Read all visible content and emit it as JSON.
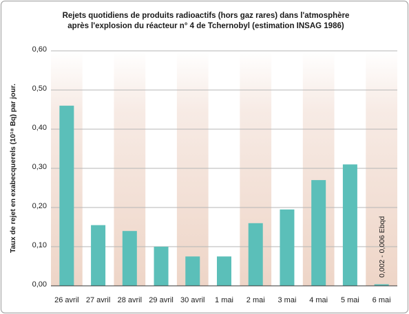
{
  "chart_data": {
    "type": "bar",
    "title_line1": "Rejets quotidiens de produits radioactifs (hors gaz rares) dans l'atmosphère",
    "title_line2": "après l'explosion du réacteur n° 4 de Tchernobyl (estimation INSAG 1986)",
    "ylabel": "Taux de rejet en exabecquerels (10¹⁸ Bq) par jour.",
    "xlabel": "",
    "categories": [
      "26 avril",
      "27 avril",
      "28 avril",
      "29 avril",
      "30 avril",
      "1 mai",
      "2 mai",
      "3 mai",
      "4 mai",
      "5 mai",
      "6 mai"
    ],
    "values": [
      0.46,
      0.155,
      0.14,
      0.1,
      0.075,
      0.075,
      0.16,
      0.195,
      0.27,
      0.31,
      0.004
    ],
    "ylim": [
      0,
      0.6
    ],
    "yticks": [
      "0,00",
      "0,10",
      "0,20",
      "0,30",
      "0,40",
      "0,50",
      "0,60"
    ],
    "annotation": "0,002 - 0,006 Ebqd",
    "grid": true,
    "bar_color": "#5bbfb9",
    "band_color": "#f0d9cd"
  }
}
